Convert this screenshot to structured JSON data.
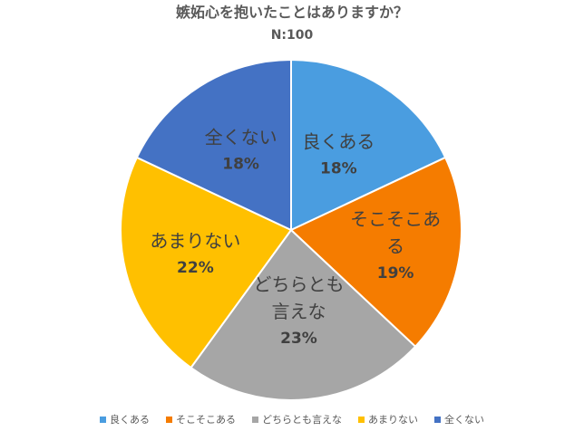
{
  "title": "嫉妬心を抱いたことはありますか？",
  "subtitle": "N:100",
  "colors": {
    "good": "#4a9de0",
    "sometimes": "#f57c00",
    "neither": "#a6a6a6",
    "not_much": "#ffc000",
    "never": "#4472c4"
  },
  "chart_data": {
    "type": "pie",
    "title": "嫉妬心を抱いたことはありますか？",
    "subtitle": "N:100",
    "legend_position": "bottom",
    "slices": [
      {
        "label": "良くある",
        "value": 18,
        "pct": "18%",
        "color": "#4a9de0",
        "label_lines": [
          "良くある"
        ]
      },
      {
        "label": "そこそこある",
        "value": 19,
        "pct": "19%",
        "color": "#f57c00",
        "label_lines": [
          "そこそこあ",
          "る"
        ]
      },
      {
        "label": "どちらとも言えな",
        "value": 23,
        "pct": "23%",
        "color": "#a6a6a6",
        "label_lines": [
          "どちらとも",
          "言えな"
        ]
      },
      {
        "label": "あまりない",
        "value": 22,
        "pct": "22%",
        "color": "#ffc000",
        "label_lines": [
          "あまりない"
        ]
      },
      {
        "label": "全くない",
        "value": 18,
        "pct": "18%",
        "color": "#4472c4",
        "label_lines": [
          "全くない"
        ]
      }
    ]
  }
}
